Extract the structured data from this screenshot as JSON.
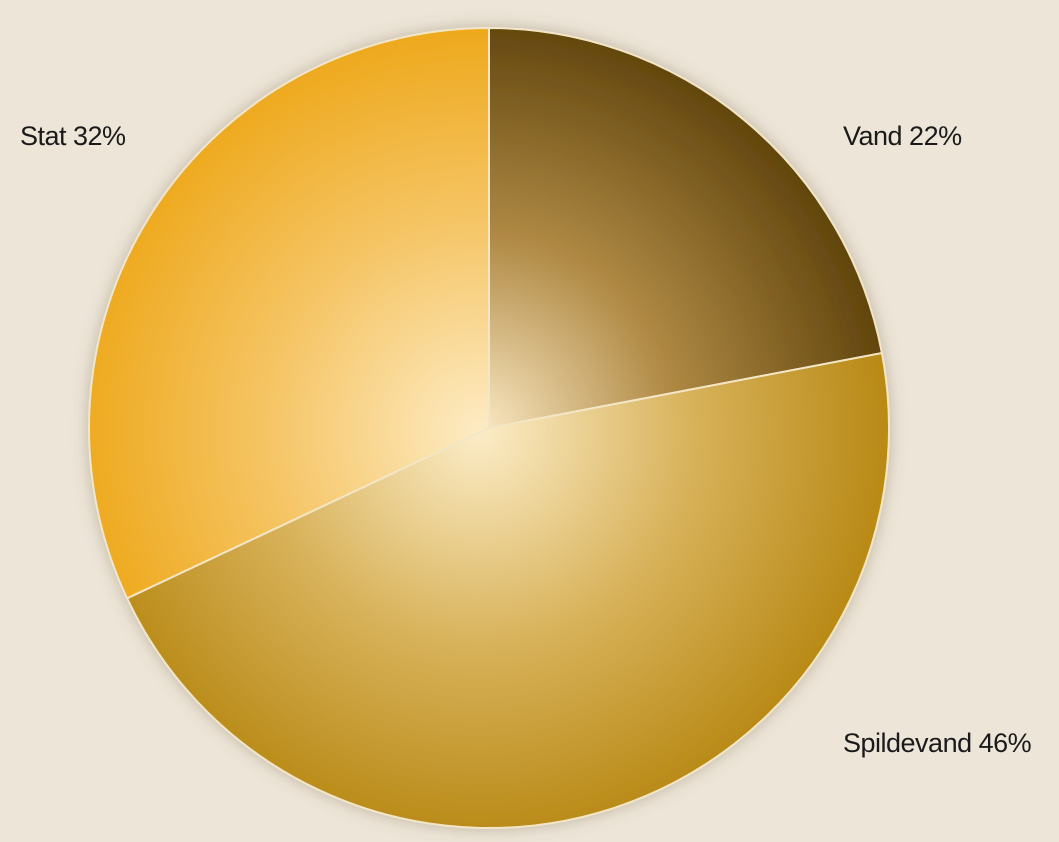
{
  "chart_data": {
    "type": "pie",
    "categories": [
      "Vand",
      "Spildevand",
      "Stat"
    ],
    "values": [
      22,
      46,
      32
    ],
    "labels": [
      "Vand 22%",
      "Spildevand 46%",
      "Stat 32%"
    ],
    "colors": [
      "#8a6312",
      "#d19f1f",
      "#f0ac1a"
    ],
    "start_angle_deg": 0,
    "direction": "clockwise"
  }
}
